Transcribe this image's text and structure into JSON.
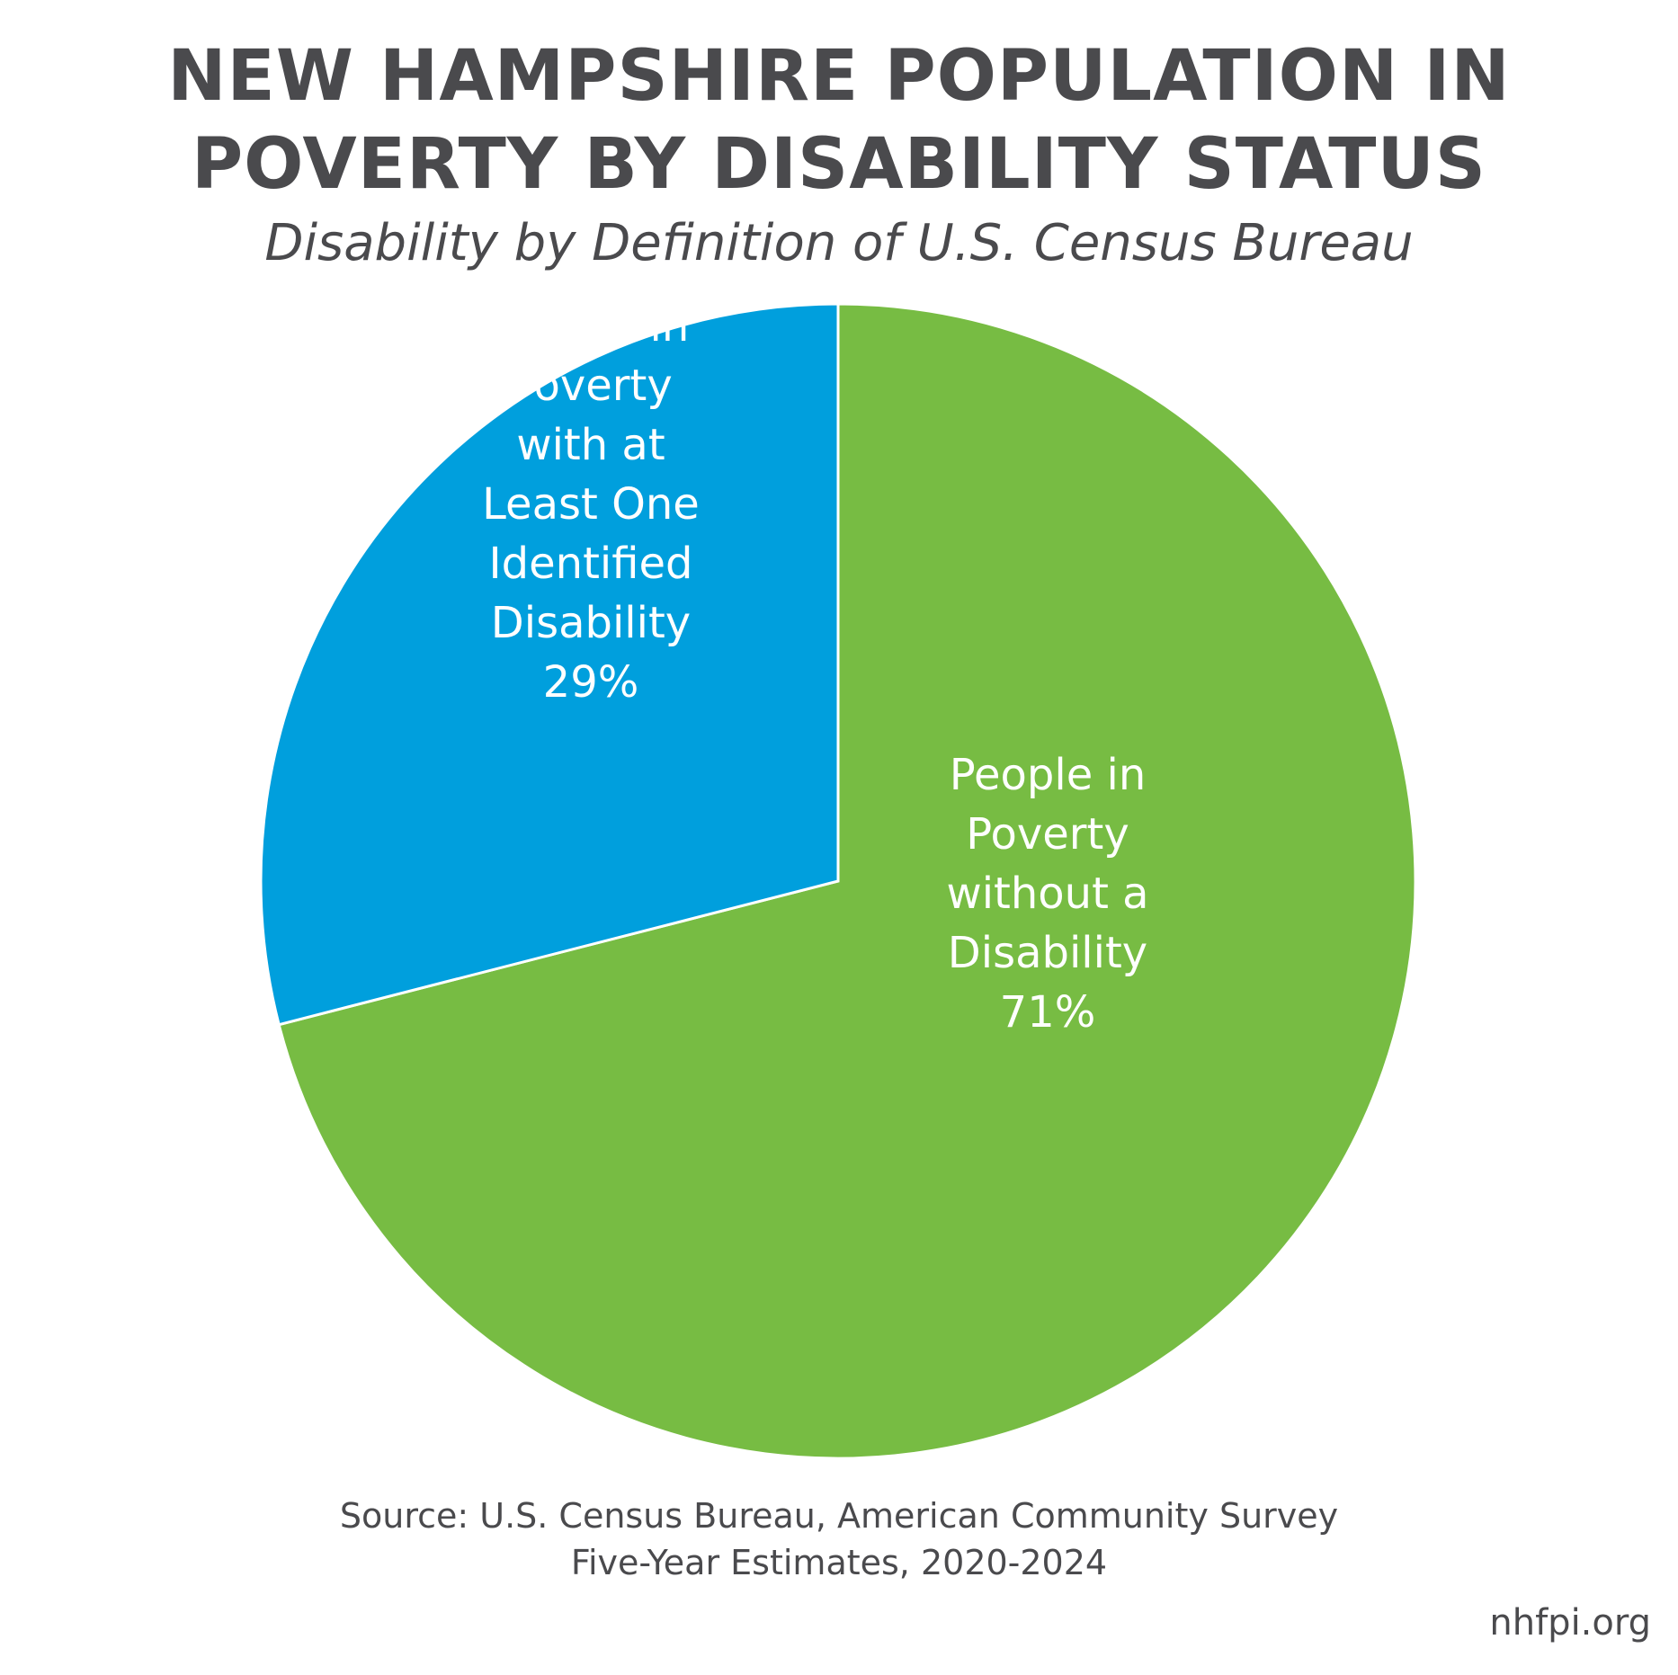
{
  "title_lines": [
    "NEW HAMPSHIRE POPULATION IN",
    "POVERTY BY DISABILITY STATUS"
  ],
  "subtitle": "Disability by Definition of U.S. Census Bureau",
  "chart_data": {
    "type": "pie",
    "slices": [
      {
        "name": "People in Poverty without a Disability",
        "label_lines": [
          "People in",
          "Poverty",
          "without a",
          "Disability"
        ],
        "value": 71,
        "value_label": "71%",
        "color": "#77bc43"
      },
      {
        "name": "People in Poverty with at Least One Identified Disability",
        "label_lines": [
          "People in",
          "Poverty",
          "with at",
          "Least One",
          "Identified",
          "Disability"
        ],
        "value": 29,
        "value_label": "29%",
        "color": "#009fdd"
      }
    ],
    "start": "12 o'clock",
    "direction": "clockwise",
    "legend": "none"
  },
  "source_lines": [
    "Source: U.S. Census Bureau, American Community Survey",
    "Five-Year Estimates, 2020-2024"
  ],
  "website": "nhfpi.org"
}
